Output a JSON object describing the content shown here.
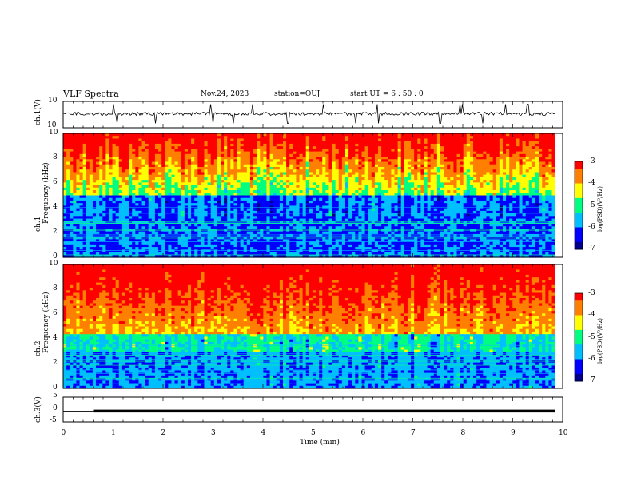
{
  "header": {
    "title": "VLF Spectra",
    "date": "Nov.24, 2023",
    "station": "station=OUJ",
    "start": "start  UT =  6 : 50 : 0"
  },
  "chart_data": [
    {
      "type": "line",
      "panel": "ch.1 waveform",
      "ylabel": "ch.1(V)",
      "ylim": [
        -10,
        10
      ],
      "yticks": [
        "10",
        "-10"
      ],
      "xlim": [
        0,
        10
      ],
      "baseline": 0,
      "spikes_x": [
        1.0,
        1.08,
        1.85,
        2.95,
        3.0,
        3.4,
        3.8,
        4.5,
        5.2,
        5.85,
        6.3,
        7.55,
        7.95,
        8.0,
        8.4,
        8.85,
        9.3
      ]
    },
    {
      "type": "heatmap",
      "panel": "ch.1 spectrogram",
      "ylabel": "ch.1\nFrequency  (kHz)",
      "ylim": [
        0,
        10
      ],
      "yticks": [
        "0",
        "2",
        "4",
        "6",
        "8",
        "10"
      ],
      "xlim": [
        0,
        9.85
      ],
      "colorbar": {
        "label": "log(PSD)(V²/Hz)",
        "range": [
          -7,
          -3
        ],
        "ticks": [
          "-3",
          "-4",
          "-5",
          "-6",
          "-7"
        ]
      }
    },
    {
      "type": "heatmap",
      "panel": "ch.2 spectrogram",
      "ylabel": "ch.2\nFrequency  (kHz)",
      "ylim": [
        0,
        10
      ],
      "yticks": [
        "0",
        "2",
        "4",
        "6",
        "8",
        "10"
      ],
      "xlim": [
        0,
        9.85
      ],
      "colorbar": {
        "label": "log(PSD)(V²/Hz)",
        "range": [
          -7,
          -3
        ],
        "ticks": [
          "-3",
          "-4",
          "-5",
          "-6",
          "-7"
        ]
      }
    },
    {
      "type": "line",
      "panel": "ch.3 waveform",
      "ylabel": "ch.3(V)",
      "ylim": [
        -5,
        5
      ],
      "yticks": [
        "5",
        "0",
        "-5"
      ],
      "xlim": [
        0,
        10
      ],
      "baseline": -0.6,
      "xlabel": "Time  (min)",
      "xticks": [
        "0",
        "1",
        "2",
        "3",
        "4",
        "5",
        "6",
        "7",
        "8",
        "9",
        "10"
      ]
    }
  ],
  "colors": {
    "scale": [
      "#00008b",
      "#0000ff",
      "#00bfff",
      "#00ff80",
      "#ffff00",
      "#ff8000",
      "#ff0000"
    ]
  }
}
